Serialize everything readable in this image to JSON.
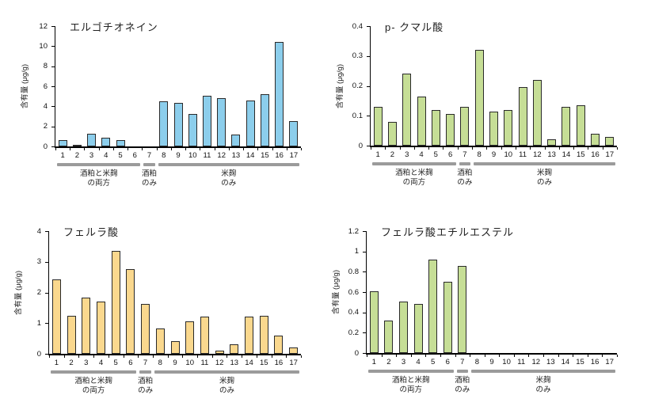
{
  "figure": {
    "background": "#ffffff",
    "description_unit": "μg/g"
  },
  "chart_data": [
    {
      "type": "bar",
      "id": "ergothioneine",
      "title": "エルゴチオネイン",
      "ylabel": "含有量 (μg/g)",
      "xlabel": "",
      "ylim": [
        0,
        12
      ],
      "yticks": [
        0,
        2,
        4,
        6,
        8,
        10,
        12
      ],
      "ytick_labels": [
        "0",
        "2",
        "4",
        "6",
        "8",
        "10",
        "12"
      ],
      "grid": false,
      "legend": "none",
      "bar_color": "#8CCEEC",
      "bar_border_color": "#2a2a2a",
      "categories": [
        "1",
        "2",
        "3",
        "4",
        "5",
        "6",
        "7",
        "8",
        "9",
        "10",
        "11",
        "12",
        "13",
        "14",
        "15",
        "16",
        "17"
      ],
      "values": [
        0.6,
        0.18,
        1.3,
        0.9,
        0.6,
        0,
        0,
        4.5,
        4.35,
        3.25,
        5.05,
        4.8,
        1.15,
        4.6,
        5.25,
        10.4,
        2.5
      ],
      "groups": [
        {
          "label_line1": "酒粕と米麹",
          "label_line2": "の両方",
          "start": 1,
          "end": 6
        },
        {
          "label_line1": "酒粕",
          "label_line2": "のみ",
          "start": 7,
          "end": 7
        },
        {
          "label_line1": "米麹",
          "label_line2": "のみ",
          "start": 8,
          "end": 17
        }
      ],
      "group_underline_color": "#9b9b9b"
    },
    {
      "type": "bar",
      "id": "p-coumaric-acid",
      "title": "p- クマル酸",
      "ylabel": "含有量 (μg/g)",
      "xlabel": "",
      "ylim": [
        0,
        0.4
      ],
      "yticks": [
        0,
        0.1,
        0.2,
        0.3,
        0.4
      ],
      "ytick_labels": [
        "0",
        "0.1",
        "0.2",
        "0.3",
        "0.4"
      ],
      "grid": false,
      "legend": "none",
      "bar_color": "#C6DE96",
      "bar_border_color": "#2a2a2a",
      "categories": [
        "1",
        "2",
        "3",
        "4",
        "5",
        "6",
        "7",
        "8",
        "9",
        "10",
        "11",
        "12",
        "13",
        "14",
        "15",
        "16",
        "17"
      ],
      "values": [
        0.13,
        0.08,
        0.24,
        0.165,
        0.12,
        0.105,
        0.13,
        0.32,
        0.115,
        0.12,
        0.195,
        0.22,
        0.02,
        0.13,
        0.135,
        0.04,
        0.03
      ],
      "groups": [
        {
          "label_line1": "酒粕と米麹",
          "label_line2": "の両方",
          "start": 1,
          "end": 6
        },
        {
          "label_line1": "酒粕",
          "label_line2": "のみ",
          "start": 7,
          "end": 7
        },
        {
          "label_line1": "米麹",
          "label_line2": "のみ",
          "start": 8,
          "end": 17
        }
      ],
      "group_underline_color": "#9b9b9b"
    },
    {
      "type": "bar",
      "id": "ferulic-acid",
      "title": "フェルラ酸",
      "ylabel": "含有量 (μg/g)",
      "xlabel": "",
      "ylim": [
        0,
        4
      ],
      "yticks": [
        0,
        1,
        2,
        3,
        4
      ],
      "ytick_labels": [
        "0",
        "1",
        "2",
        "3",
        "4"
      ],
      "grid": false,
      "legend": "none",
      "bar_color": "#FAD88E",
      "bar_border_color": "#2a2a2a",
      "categories": [
        "1",
        "2",
        "3",
        "4",
        "5",
        "6",
        "7",
        "8",
        "9",
        "10",
        "11",
        "12",
        "13",
        "14",
        "15",
        "16",
        "17"
      ],
      "values": [
        2.42,
        1.25,
        1.83,
        1.7,
        3.35,
        2.75,
        1.62,
        0.82,
        0.42,
        1.05,
        1.21,
        0.11,
        0.3,
        1.21,
        1.24,
        0.6,
        0.2
      ],
      "groups": [
        {
          "label_line1": "酒粕と米麹",
          "label_line2": "の両方",
          "start": 1,
          "end": 6
        },
        {
          "label_line1": "酒粕",
          "label_line2": "のみ",
          "start": 7,
          "end": 7
        },
        {
          "label_line1": "米麹",
          "label_line2": "のみ",
          "start": 8,
          "end": 17
        }
      ],
      "group_underline_color": "#9b9b9b"
    },
    {
      "type": "bar",
      "id": "ferulic-acid-ethyl-ester",
      "title": "フェルラ酸エチルエステル",
      "ylabel": "含有量 (μg/g)",
      "xlabel": "",
      "ylim": [
        0,
        1.2
      ],
      "yticks": [
        0,
        0.2,
        0.4,
        0.6,
        0.8,
        1,
        1.2
      ],
      "ytick_labels": [
        "0",
        "0.2",
        "0.4",
        "0.6",
        "0.8",
        "1",
        "1.2"
      ],
      "grid": false,
      "legend": "none",
      "bar_color": "#C6DE96",
      "bar_border_color": "#2a2a2a",
      "categories": [
        "1",
        "2",
        "3",
        "4",
        "5",
        "6",
        "7",
        "8",
        "9",
        "10",
        "11",
        "12",
        "13",
        "14",
        "15",
        "16",
        "17"
      ],
      "values": [
        0.61,
        0.32,
        0.51,
        0.48,
        0.92,
        0.7,
        0.86,
        0,
        0,
        0,
        0,
        0,
        0,
        0,
        0,
        0,
        0
      ],
      "groups": [
        {
          "label_line1": "酒粕と米麹",
          "label_line2": "の両方",
          "start": 1,
          "end": 6
        },
        {
          "label_line1": "酒粕",
          "label_line2": "のみ",
          "start": 7,
          "end": 7
        },
        {
          "label_line1": "米麹",
          "label_line2": "のみ",
          "start": 8,
          "end": 17
        }
      ],
      "group_underline_color": "#9b9b9b"
    }
  ]
}
